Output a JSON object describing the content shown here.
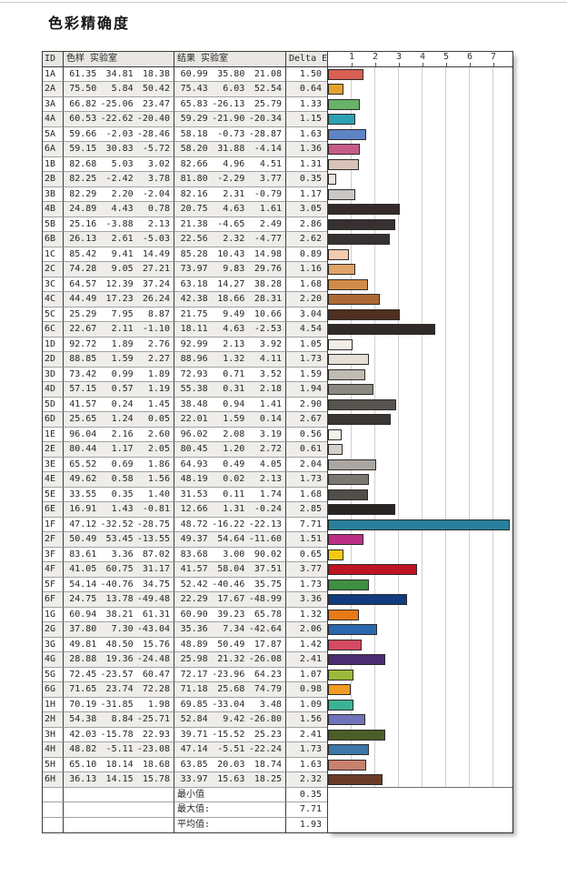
{
  "title": "色彩精确度",
  "table": {
    "headers": {
      "id": "ID",
      "sample": "色样 实验室",
      "result": "结果 实验室",
      "delta": "Delta E"
    },
    "rows": [
      {
        "id": "1A",
        "sample": [
          "61.35",
          "34.81",
          "18.38"
        ],
        "result": [
          "60.99",
          "35.80",
          "21.08"
        ],
        "delta": "1.50",
        "color": "#d95f55"
      },
      {
        "id": "2A",
        "sample": [
          "75.50",
          "5.84",
          "50.42"
        ],
        "result": [
          "75.43",
          "6.03",
          "52.54"
        ],
        "delta": "0.64",
        "color": "#e2a32d"
      },
      {
        "id": "3A",
        "sample": [
          "66.82",
          "-25.06",
          "23.47"
        ],
        "result": [
          "65.83",
          "-26.13",
          "25.79"
        ],
        "delta": "1.33",
        "color": "#68b269"
      },
      {
        "id": "4A",
        "sample": [
          "60.53",
          "-22.62",
          "-20.40"
        ],
        "result": [
          "59.29",
          "-21.90",
          "-20.34"
        ],
        "delta": "1.15",
        "color": "#2da0b4"
      },
      {
        "id": "5A",
        "sample": [
          "59.66",
          "-2.03",
          "-28.46"
        ],
        "result": [
          "58.18",
          "-0.73",
          "-28.87"
        ],
        "delta": "1.63",
        "color": "#5e84c6"
      },
      {
        "id": "6A",
        "sample": [
          "59.15",
          "30.83",
          "-5.72"
        ],
        "result": [
          "58.20",
          "31.88",
          "-4.14"
        ],
        "delta": "1.36",
        "color": "#c55c88"
      },
      {
        "id": "1B",
        "sample": [
          "82.68",
          "5.03",
          "3.02"
        ],
        "result": [
          "82.66",
          "4.96",
          "4.51"
        ],
        "delta": "1.31",
        "color": "#d9c3b9"
      },
      {
        "id": "2B",
        "sample": [
          "82.25",
          "-2.42",
          "3.78"
        ],
        "result": [
          "81.80",
          "-2.29",
          "3.77"
        ],
        "delta": "0.35",
        "color": "#e9e5e3"
      },
      {
        "id": "3B",
        "sample": [
          "82.29",
          "2.20",
          "-2.04"
        ],
        "result": [
          "82.16",
          "2.31",
          "-0.79"
        ],
        "delta": "1.17",
        "color": "#c9c6c6"
      },
      {
        "id": "4B",
        "sample": [
          "24.89",
          "4.43",
          "0.78"
        ],
        "result": [
          "20.75",
          "4.63",
          "1.61"
        ],
        "delta": "3.05",
        "color": "#332c2b"
      },
      {
        "id": "5B",
        "sample": [
          "25.16",
          "-3.88",
          "2.13"
        ],
        "result": [
          "21.38",
          "-4.65",
          "2.49"
        ],
        "delta": "2.86",
        "color": "#363130"
      },
      {
        "id": "6B",
        "sample": [
          "26.13",
          "2.61",
          "-5.03"
        ],
        "result": [
          "22.56",
          "2.32",
          "-4.77"
        ],
        "delta": "2.62",
        "color": "#363231"
      },
      {
        "id": "1C",
        "sample": [
          "85.42",
          "9.41",
          "14.49"
        ],
        "result": [
          "85.28",
          "10.43",
          "14.98"
        ],
        "delta": "0.89",
        "color": "#f5cbb0"
      },
      {
        "id": "2C",
        "sample": [
          "74.28",
          "9.05",
          "27.21"
        ],
        "result": [
          "73.97",
          "9.83",
          "29.76"
        ],
        "delta": "1.16",
        "color": "#dfa468"
      },
      {
        "id": "3C",
        "sample": [
          "64.57",
          "12.39",
          "37.24"
        ],
        "result": [
          "63.18",
          "14.27",
          "38.28"
        ],
        "delta": "1.68",
        "color": "#d18c49"
      },
      {
        "id": "4C",
        "sample": [
          "44.49",
          "17.23",
          "26.24"
        ],
        "result": [
          "42.38",
          "18.66",
          "28.31"
        ],
        "delta": "2.20",
        "color": "#ad6a36"
      },
      {
        "id": "5C",
        "sample": [
          "25.29",
          "7.95",
          "8.87"
        ],
        "result": [
          "21.75",
          "9.49",
          "10.66"
        ],
        "delta": "3.04",
        "color": "#4e2f20"
      },
      {
        "id": "6C",
        "sample": [
          "22.67",
          "2.11",
          "-1.10"
        ],
        "result": [
          "18.11",
          "4.63",
          "-2.53"
        ],
        "delta": "4.54",
        "color": "#302a28"
      },
      {
        "id": "1D",
        "sample": [
          "92.72",
          "1.89",
          "2.76"
        ],
        "result": [
          "92.99",
          "2.13",
          "3.92"
        ],
        "delta": "1.05",
        "color": "#f2ede6"
      },
      {
        "id": "2D",
        "sample": [
          "88.85",
          "1.59",
          "2.27"
        ],
        "result": [
          "88.96",
          "1.32",
          "4.11"
        ],
        "delta": "1.73",
        "color": "#e5dfd6"
      },
      {
        "id": "3D",
        "sample": [
          "73.42",
          "0.99",
          "1.89"
        ],
        "result": [
          "72.93",
          "0.71",
          "3.52"
        ],
        "delta": "1.59",
        "color": "#bfbab2"
      },
      {
        "id": "4D",
        "sample": [
          "57.15",
          "0.57",
          "1.19"
        ],
        "result": [
          "55.38",
          "0.31",
          "2.18"
        ],
        "delta": "1.94",
        "color": "#8b8881"
      },
      {
        "id": "5D",
        "sample": [
          "41.57",
          "0.24",
          "1.45"
        ],
        "result": [
          "38.48",
          "0.94",
          "1.41"
        ],
        "delta": "2.90",
        "color": "#575450"
      },
      {
        "id": "6D",
        "sample": [
          "25.65",
          "1.24",
          "0.05"
        ],
        "result": [
          "22.01",
          "1.59",
          "0.14"
        ],
        "delta": "2.67",
        "color": "#3b3734"
      },
      {
        "id": "1E",
        "sample": [
          "96.04",
          "2.16",
          "2.60"
        ],
        "result": [
          "96.02",
          "2.08",
          "3.19"
        ],
        "delta": "0.56",
        "color": "#f5f1ec"
      },
      {
        "id": "2E",
        "sample": [
          "80.44",
          "1.17",
          "2.05"
        ],
        "result": [
          "80.45",
          "1.20",
          "2.72"
        ],
        "delta": "0.61",
        "color": "#d4cfca"
      },
      {
        "id": "3E",
        "sample": [
          "65.52",
          "0.69",
          "1.86"
        ],
        "result": [
          "64.93",
          "0.49",
          "4.05"
        ],
        "delta": "2.04",
        "color": "#aba6a1"
      },
      {
        "id": "4E",
        "sample": [
          "49.62",
          "0.58",
          "1.56"
        ],
        "result": [
          "48.19",
          "0.02",
          "2.13"
        ],
        "delta": "1.73",
        "color": "#7b7772"
      },
      {
        "id": "5E",
        "sample": [
          "33.55",
          "0.35",
          "1.40"
        ],
        "result": [
          "31.53",
          "0.11",
          "1.74"
        ],
        "delta": "1.68",
        "color": "#514e4a"
      },
      {
        "id": "6E",
        "sample": [
          "16.91",
          "1.43",
          "-0.81"
        ],
        "result": [
          "12.66",
          "1.31",
          "-0.24"
        ],
        "delta": "2.85",
        "color": "#292524"
      },
      {
        "id": "1F",
        "sample": [
          "47.12",
          "-32.52",
          "-28.75"
        ],
        "result": [
          "48.72",
          "-16.22",
          "-22.13"
        ],
        "delta": "7.71",
        "color": "#28809c"
      },
      {
        "id": "2F",
        "sample": [
          "50.49",
          "53.45",
          "-13.55"
        ],
        "result": [
          "49.37",
          "54.64",
          "-11.60"
        ],
        "delta": "1.51",
        "color": "#bd2f84"
      },
      {
        "id": "3F",
        "sample": [
          "83.61",
          "3.36",
          "87.02"
        ],
        "result": [
          "83.68",
          "3.00",
          "90.02"
        ],
        "delta": "0.65",
        "color": "#f4ca10"
      },
      {
        "id": "4F",
        "sample": [
          "41.05",
          "60.75",
          "31.17"
        ],
        "result": [
          "41.57",
          "58.04",
          "37.51"
        ],
        "delta": "3.77",
        "color": "#bf1422"
      },
      {
        "id": "5F",
        "sample": [
          "54.14",
          "-40.76",
          "34.75"
        ],
        "result": [
          "52.42",
          "-40.46",
          "35.75"
        ],
        "delta": "1.73",
        "color": "#3f8f43"
      },
      {
        "id": "6F",
        "sample": [
          "24.75",
          "13.78",
          "-49.48"
        ],
        "result": [
          "22.29",
          "17.67",
          "-48.99"
        ],
        "delta": "3.36",
        "color": "#123c80"
      },
      {
        "id": "1G",
        "sample": [
          "60.94",
          "38.21",
          "61.31"
        ],
        "result": [
          "60.90",
          "39.23",
          "65.78"
        ],
        "delta": "1.32",
        "color": "#e87917"
      },
      {
        "id": "2G",
        "sample": [
          "37.80",
          "7.30",
          "-43.04"
        ],
        "result": [
          "35.36",
          "7.34",
          "-42.64"
        ],
        "delta": "2.06",
        "color": "#2a67ad"
      },
      {
        "id": "3G",
        "sample": [
          "49.81",
          "48.50",
          "15.76"
        ],
        "result": [
          "48.89",
          "50.49",
          "17.87"
        ],
        "delta": "1.42",
        "color": "#d44a61"
      },
      {
        "id": "4G",
        "sample": [
          "28.88",
          "19.36",
          "-24.48"
        ],
        "result": [
          "25.98",
          "21.32",
          "-26.08"
        ],
        "delta": "2.41",
        "color": "#4b2d72"
      },
      {
        "id": "5G",
        "sample": [
          "72.45",
          "-23.57",
          "60.47"
        ],
        "result": [
          "72.17",
          "-23.96",
          "64.23"
        ],
        "delta": "1.07",
        "color": "#9cba3a"
      },
      {
        "id": "6G",
        "sample": [
          "71.65",
          "23.74",
          "72.28"
        ],
        "result": [
          "71.18",
          "25.68",
          "74.79"
        ],
        "delta": "0.98",
        "color": "#f09c20"
      },
      {
        "id": "1H",
        "sample": [
          "70.19",
          "-31.85",
          "1.98"
        ],
        "result": [
          "69.85",
          "-33.04",
          "3.48"
        ],
        "delta": "1.09",
        "color": "#3ab394"
      },
      {
        "id": "2H",
        "sample": [
          "54.38",
          "8.84",
          "-25.71"
        ],
        "result": [
          "52.84",
          "9.42",
          "-26.80"
        ],
        "delta": "1.56",
        "color": "#7073b8"
      },
      {
        "id": "3H",
        "sample": [
          "42.03",
          "-15.78",
          "22.93"
        ],
        "result": [
          "39.71",
          "-15.52",
          "25.23"
        ],
        "delta": "2.41",
        "color": "#4a5e27"
      },
      {
        "id": "4H",
        "sample": [
          "48.82",
          "-5.11",
          "-23.08"
        ],
        "result": [
          "47.14",
          "-5.51",
          "-22.24"
        ],
        "delta": "1.73",
        "color": "#3c77a7"
      },
      {
        "id": "5H",
        "sample": [
          "65.10",
          "18.14",
          "18.68"
        ],
        "result": [
          "63.85",
          "20.03",
          "18.74"
        ],
        "delta": "1.63",
        "color": "#c8806f"
      },
      {
        "id": "6H",
        "sample": [
          "36.13",
          "14.15",
          "15.78"
        ],
        "result": [
          "33.97",
          "15.63",
          "18.25"
        ],
        "delta": "2.32",
        "color": "#693a27"
      }
    ],
    "summary_rows": [
      {
        "label": "最小值",
        "value": "0.35"
      },
      {
        "label": "最大值:",
        "value": "7.71"
      },
      {
        "label": "平均值:",
        "value": "1.93"
      }
    ]
  },
  "chart_data": {
    "type": "bar",
    "orientation": "horizontal",
    "title": "色彩精确度",
    "xlabel": "Delta E",
    "xlim": [
      0,
      7.85
    ],
    "xticks": [
      "1",
      "2",
      "3",
      "4",
      "5",
      "6",
      "7"
    ],
    "grid": true,
    "legend": "none",
    "categories": [
      "1A",
      "2A",
      "3A",
      "4A",
      "5A",
      "6A",
      "1B",
      "2B",
      "3B",
      "4B",
      "5B",
      "6B",
      "1C",
      "2C",
      "3C",
      "4C",
      "5C",
      "6C",
      "1D",
      "2D",
      "3D",
      "4D",
      "5D",
      "6D",
      "1E",
      "2E",
      "3E",
      "4E",
      "5E",
      "6E",
      "1F",
      "2F",
      "3F",
      "4F",
      "5F",
      "6F",
      "1G",
      "2G",
      "3G",
      "4G",
      "5G",
      "6G",
      "1H",
      "2H",
      "3H",
      "4H",
      "5H",
      "6H"
    ],
    "values": [
      1.5,
      0.64,
      1.33,
      1.15,
      1.63,
      1.36,
      1.31,
      0.35,
      1.17,
      3.05,
      2.86,
      2.62,
      0.89,
      1.16,
      1.68,
      2.2,
      3.04,
      4.54,
      1.05,
      1.73,
      1.59,
      1.94,
      2.9,
      2.67,
      0.56,
      0.61,
      2.04,
      1.73,
      1.68,
      2.85,
      7.71,
      1.51,
      0.65,
      3.77,
      1.73,
      3.36,
      1.32,
      2.06,
      1.42,
      2.41,
      1.07,
      0.98,
      1.09,
      1.56,
      2.41,
      1.73,
      1.63,
      2.32
    ],
    "bar_colors": [
      "#d95f55",
      "#e2a32d",
      "#68b269",
      "#2da0b4",
      "#5e84c6",
      "#c55c88",
      "#d9c3b9",
      "#e9e5e3",
      "#c9c6c6",
      "#332c2b",
      "#363130",
      "#363231",
      "#f5cbb0",
      "#dfa468",
      "#d18c49",
      "#ad6a36",
      "#4e2f20",
      "#302a28",
      "#f2ede6",
      "#e5dfd6",
      "#bfbab2",
      "#8b8881",
      "#575450",
      "#3b3734",
      "#f5f1ec",
      "#d4cfca",
      "#aba6a1",
      "#7b7772",
      "#514e4a",
      "#292524",
      "#28809c",
      "#bd2f84",
      "#f4ca10",
      "#bf1422",
      "#3f8f43",
      "#123c80",
      "#e87917",
      "#2a67ad",
      "#d44a61",
      "#4b2d72",
      "#9cba3a",
      "#f09c20",
      "#3ab394",
      "#7073b8",
      "#4a5e27",
      "#3c77a7",
      "#c8806f",
      "#693a27"
    ],
    "summary": {
      "min": 0.35,
      "max": 7.71,
      "mean": 1.93
    }
  }
}
